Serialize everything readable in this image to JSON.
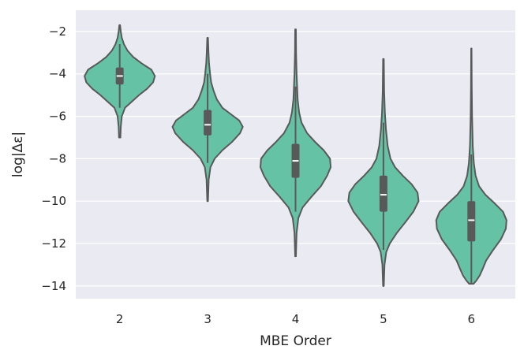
{
  "chart_data": {
    "type": "violin",
    "title": "",
    "xlabel": "MBE Order",
    "ylabel": "log|Δε|",
    "ylim": [
      -14.6,
      -1.0
    ],
    "yticks": [
      -2,
      -4,
      -6,
      -8,
      -10,
      -12,
      -14
    ],
    "ytick_labels": [
      "−2",
      "−4",
      "−6",
      "−8",
      "−10",
      "−12",
      "−14"
    ],
    "categories": [
      "2",
      "3",
      "4",
      "5",
      "6"
    ],
    "grid": true,
    "colors": {
      "violin_fill": "#66c2a5",
      "violin_edge": "#595959",
      "box": "#595959",
      "median": "#ffffff",
      "background": "#eaeaf2",
      "grid": "#ffffff"
    },
    "series": [
      {
        "category": "2",
        "min": -7.0,
        "q1": -4.5,
        "median": -4.1,
        "q3": -3.7,
        "max": -1.7,
        "whisker_low": -5.6,
        "whisker_high": -2.6,
        "density": [
          [
            -7.0,
            0.02
          ],
          [
            -6.5,
            0.03
          ],
          [
            -6.0,
            0.06
          ],
          [
            -5.6,
            0.15
          ],
          [
            -5.3,
            0.35
          ],
          [
            -5.0,
            0.55
          ],
          [
            -4.7,
            0.78
          ],
          [
            -4.4,
            0.95
          ],
          [
            -4.1,
            1.0
          ],
          [
            -3.8,
            0.9
          ],
          [
            -3.5,
            0.62
          ],
          [
            -3.2,
            0.38
          ],
          [
            -2.9,
            0.22
          ],
          [
            -2.6,
            0.12
          ],
          [
            -2.3,
            0.06
          ],
          [
            -2.0,
            0.03
          ],
          [
            -1.7,
            0.01
          ]
        ]
      },
      {
        "category": "3",
        "min": -10.0,
        "q1": -6.9,
        "median": -6.4,
        "q3": -5.7,
        "max": -2.3,
        "whisker_low": -8.2,
        "whisker_high": -4.0,
        "density": [
          [
            -10.0,
            0.01
          ],
          [
            -9.0,
            0.03
          ],
          [
            -8.4,
            0.08
          ],
          [
            -8.0,
            0.2
          ],
          [
            -7.6,
            0.42
          ],
          [
            -7.2,
            0.7
          ],
          [
            -6.8,
            0.92
          ],
          [
            -6.5,
            1.0
          ],
          [
            -6.2,
            0.9
          ],
          [
            -5.9,
            0.66
          ],
          [
            -5.6,
            0.42
          ],
          [
            -5.2,
            0.26
          ],
          [
            -4.8,
            0.17
          ],
          [
            -4.4,
            0.1
          ],
          [
            -4.0,
            0.07
          ],
          [
            -3.5,
            0.04
          ],
          [
            -3.0,
            0.025
          ],
          [
            -2.3,
            0.01
          ]
        ]
      },
      {
        "category": "4",
        "min": -12.6,
        "q1": -8.9,
        "median": -8.1,
        "q3": -7.3,
        "max": -1.9,
        "whisker_low": -10.5,
        "whisker_high": -4.6,
        "density": [
          [
            -12.6,
            0.01
          ],
          [
            -11.5,
            0.03
          ],
          [
            -10.8,
            0.08
          ],
          [
            -10.3,
            0.2
          ],
          [
            -9.8,
            0.45
          ],
          [
            -9.3,
            0.72
          ],
          [
            -8.8,
            0.9
          ],
          [
            -8.4,
            1.0
          ],
          [
            -8.0,
            0.98
          ],
          [
            -7.6,
            0.8
          ],
          [
            -7.2,
            0.55
          ],
          [
            -6.8,
            0.33
          ],
          [
            -6.3,
            0.17
          ],
          [
            -5.8,
            0.1
          ],
          [
            -5.2,
            0.06
          ],
          [
            -4.6,
            0.045
          ],
          [
            -4.0,
            0.03
          ],
          [
            -3.0,
            0.015
          ],
          [
            -1.9,
            0.01
          ]
        ]
      },
      {
        "category": "5",
        "min": -14.0,
        "q1": -10.5,
        "median": -9.7,
        "q3": -8.8,
        "max": -3.3,
        "whisker_low": -12.3,
        "whisker_high": -6.3,
        "density": [
          [
            -14.0,
            0.01
          ],
          [
            -13.0,
            0.03
          ],
          [
            -12.4,
            0.08
          ],
          [
            -12.0,
            0.18
          ],
          [
            -11.5,
            0.38
          ],
          [
            -11.0,
            0.62
          ],
          [
            -10.5,
            0.85
          ],
          [
            -10.0,
            1.0
          ],
          [
            -9.6,
            0.97
          ],
          [
            -9.2,
            0.8
          ],
          [
            -8.8,
            0.55
          ],
          [
            -8.4,
            0.33
          ],
          [
            -8.0,
            0.2
          ],
          [
            -7.4,
            0.12
          ],
          [
            -6.6,
            0.07
          ],
          [
            -5.8,
            0.04
          ],
          [
            -4.8,
            0.02
          ],
          [
            -3.3,
            0.01
          ]
        ]
      },
      {
        "category": "6",
        "min": -13.9,
        "q1": -11.9,
        "median": -10.9,
        "q3": -10.0,
        "max": -2.8,
        "whisker_low": -13.9,
        "whisker_high": -7.8,
        "density": [
          [
            -13.9,
            0.06
          ],
          [
            -13.75,
            0.14
          ],
          [
            -13.5,
            0.24
          ],
          [
            -13.2,
            0.32
          ],
          [
            -12.8,
            0.42
          ],
          [
            -12.3,
            0.62
          ],
          [
            -11.8,
            0.84
          ],
          [
            -11.3,
            0.98
          ],
          [
            -10.9,
            1.0
          ],
          [
            -10.5,
            0.9
          ],
          [
            -10.1,
            0.66
          ],
          [
            -9.7,
            0.4
          ],
          [
            -9.3,
            0.22
          ],
          [
            -8.8,
            0.12
          ],
          [
            -8.2,
            0.07
          ],
          [
            -7.4,
            0.04
          ],
          [
            -6.0,
            0.02
          ],
          [
            -4.5,
            0.01
          ],
          [
            -2.8,
            0.005
          ]
        ]
      }
    ]
  }
}
